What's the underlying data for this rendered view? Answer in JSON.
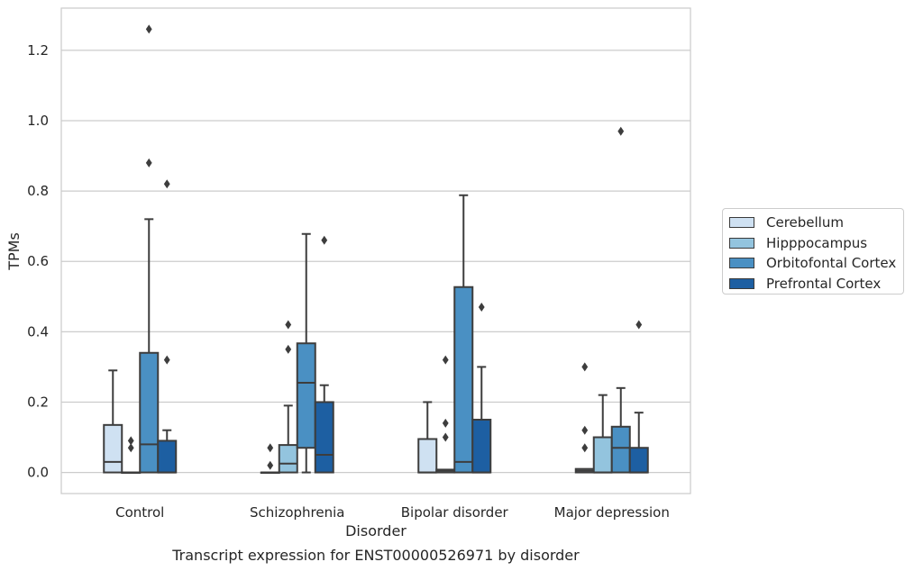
{
  "chart_data": {
    "type": "box",
    "title": "",
    "caption": "Transcript expression for ENST00000526971 by disorder",
    "xlabel": "Disorder",
    "ylabel": "TPMs",
    "ylim": [
      -0.06,
      1.32
    ],
    "yticks": [
      "0.0",
      "0.2",
      "0.4",
      "0.6",
      "0.8",
      "1.0",
      "1.2"
    ],
    "grid": "horizontal",
    "legend_position": "right",
    "categories": [
      "Control",
      "Schizophrenia",
      "Bipolar disorder",
      "Major depression"
    ],
    "series": [
      {
        "name": "Cerebellum",
        "color": "#cfe1f2",
        "boxes": [
          {
            "whisker_low": 0.0,
            "q1": 0.0,
            "median": 0.03,
            "q3": 0.135,
            "whisker_high": 0.29,
            "outliers": []
          },
          {
            "whisker_low": 0.0,
            "q1": 0.0,
            "median": 0.0,
            "q3": 0.0,
            "whisker_high": 0.0,
            "outliers": [
              0.02,
              0.07
            ]
          },
          {
            "whisker_low": 0.0,
            "q1": 0.0,
            "median": 0.0,
            "q3": 0.095,
            "whisker_high": 0.2,
            "outliers": []
          },
          {
            "whisker_low": 0.0,
            "q1": 0.0,
            "median": 0.005,
            "q3": 0.01,
            "whisker_high": 0.01,
            "outliers": [
              0.07,
              0.12,
              0.3
            ]
          }
        ]
      },
      {
        "name": "Hipppocampus",
        "color": "#93c4de",
        "boxes": [
          {
            "whisker_low": 0.0,
            "q1": 0.0,
            "median": 0.0,
            "q3": 0.0,
            "whisker_high": 0.0,
            "outliers": [
              0.07,
              0.09
            ]
          },
          {
            "whisker_low": 0.0,
            "q1": 0.0,
            "median": 0.025,
            "q3": 0.078,
            "whisker_high": 0.19,
            "outliers": [
              0.35,
              0.42
            ]
          },
          {
            "whisker_low": 0.0,
            "q1": 0.0,
            "median": 0.005,
            "q3": 0.008,
            "whisker_high": 0.008,
            "outliers": [
              0.1,
              0.14,
              0.32
            ]
          },
          {
            "whisker_low": 0.0,
            "q1": 0.0,
            "median": 0.0,
            "q3": 0.1,
            "whisker_high": 0.22,
            "outliers": []
          }
        ]
      },
      {
        "name": "Orbitofontal Cortex",
        "color": "#4a90c3",
        "boxes": [
          {
            "whisker_low": 0.0,
            "q1": 0.0,
            "median": 0.08,
            "q3": 0.34,
            "whisker_high": 0.72,
            "outliers": [
              0.88,
              1.26
            ]
          },
          {
            "whisker_low": 0.0,
            "q1": 0.07,
            "median": 0.255,
            "q3": 0.367,
            "whisker_high": 0.678,
            "outliers": []
          },
          {
            "whisker_low": 0.0,
            "q1": 0.0,
            "median": 0.03,
            "q3": 0.527,
            "whisker_high": 0.788,
            "outliers": []
          },
          {
            "whisker_low": 0.0,
            "q1": 0.0,
            "median": 0.07,
            "q3": 0.13,
            "whisker_high": 0.24,
            "outliers": [
              0.97
            ]
          }
        ]
      },
      {
        "name": "Prefrontal Cortex",
        "color": "#1d5fa2",
        "boxes": [
          {
            "whisker_low": 0.0,
            "q1": 0.0,
            "median": 0.0,
            "q3": 0.09,
            "whisker_high": 0.12,
            "outliers": [
              0.32,
              0.82
            ]
          },
          {
            "whisker_low": 0.0,
            "q1": 0.0,
            "median": 0.05,
            "q3": 0.2,
            "whisker_high": 0.248,
            "outliers": [
              0.66
            ]
          },
          {
            "whisker_low": 0.0,
            "q1": 0.0,
            "median": 0.0,
            "q3": 0.15,
            "whisker_high": 0.3,
            "outliers": [
              0.47
            ]
          },
          {
            "whisker_low": 0.0,
            "q1": 0.0,
            "median": 0.0,
            "q3": 0.07,
            "whisker_high": 0.17,
            "outliers": [
              0.42
            ]
          }
        ]
      }
    ]
  }
}
